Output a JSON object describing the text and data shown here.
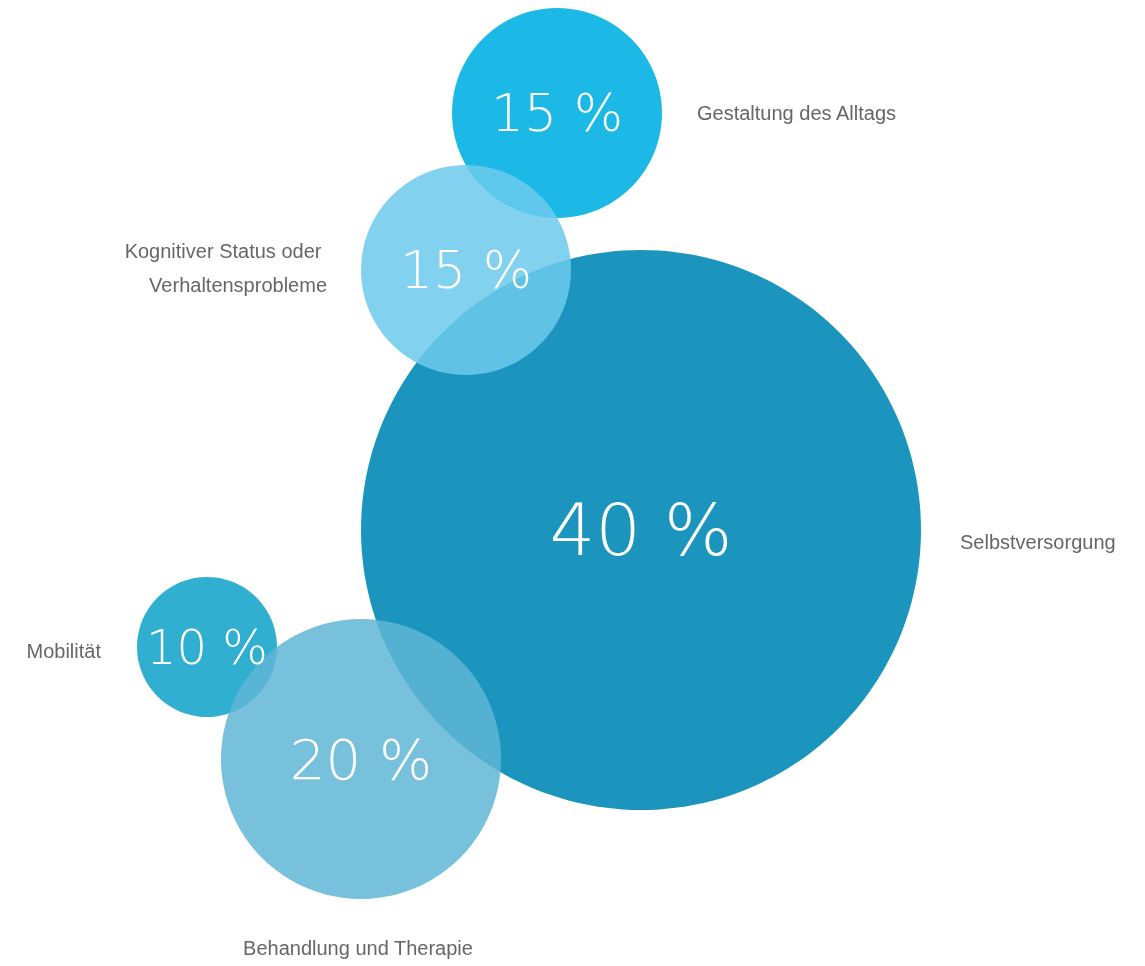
{
  "chart_data": {
    "type": "other",
    "categories": [
      "Selbstversorgung",
      "Gestaltung des Alltags",
      "Kognitiver Status oder Verhaltensprobleme",
      "Mobilität",
      "Behandlung und Therapie"
    ],
    "values": [
      40,
      15,
      15,
      10,
      20
    ],
    "value_labels": [
      "40 %",
      "15 %",
      "15 %",
      "10 %",
      "20 %"
    ],
    "colors": [
      "#1b95bd",
      "#1cb9e6",
      "#6ccaec",
      "#1ba6cc",
      "#5fb6d6"
    ]
  }
}
